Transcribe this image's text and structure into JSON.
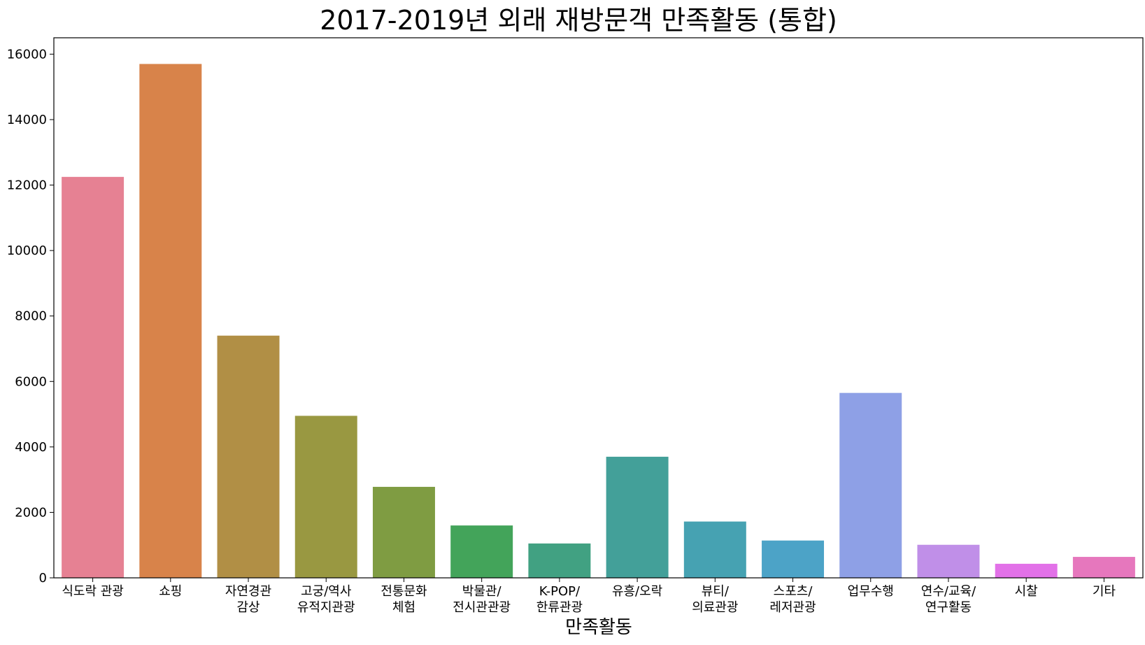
{
  "chart_data": {
    "type": "bar",
    "title": "2017-2019년 외래 재방문객 만족활동 (통합)",
    "xlabel": "만족활동",
    "ylabel": "",
    "ylim": [
      0,
      16500
    ],
    "yticks": [
      0,
      2000,
      4000,
      6000,
      8000,
      10000,
      12000,
      14000,
      16000
    ],
    "grid": false,
    "legend": "none",
    "categories": [
      [
        "식도락 관광"
      ],
      [
        "쇼핑"
      ],
      [
        "자연경관",
        "감상"
      ],
      [
        "고궁/역사",
        "유적지관광"
      ],
      [
        "전통문화",
        "체험"
      ],
      [
        "박물관/",
        "전시관관광"
      ],
      [
        "K-POP/",
        "한류관광"
      ],
      [
        "유흥/오락"
      ],
      [
        "뷰티/",
        "의료관광"
      ],
      [
        "스포츠/",
        "레저관광"
      ],
      [
        "업무수행"
      ],
      [
        "연수/교육/",
        "연구활동"
      ],
      [
        "시찰"
      ],
      [
        "기타"
      ]
    ],
    "values": [
      12250,
      15700,
      7400,
      4950,
      2780,
      1600,
      1050,
      3700,
      1720,
      1140,
      5650,
      1010,
      430,
      640
    ],
    "colors": [
      "#e68193",
      "#d8834a",
      "#b18f45",
      "#999841",
      "#7f9c42",
      "#43a45a",
      "#41a182",
      "#43a099",
      "#46a2b2",
      "#4ca3c7",
      "#8ea0e6",
      "#c08fe8",
      "#e271e8",
      "#e677bd"
    ]
  }
}
